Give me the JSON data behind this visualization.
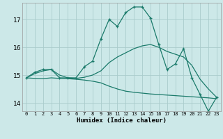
{
  "xlabel": "Humidex (Indice chaleur)",
  "bg_color": "#cce8e8",
  "grid_color": "#aacccc",
  "line_color": "#1a7a6a",
  "xlim": [
    -0.5,
    23.5
  ],
  "ylim": [
    13.7,
    17.6
  ],
  "yticks": [
    14,
    15,
    16,
    17
  ],
  "xticks": [
    0,
    1,
    2,
    3,
    4,
    5,
    6,
    7,
    8,
    9,
    10,
    11,
    12,
    13,
    14,
    15,
    16,
    17,
    18,
    19,
    20,
    21,
    22,
    23
  ],
  "series": [
    {
      "x": [
        0,
        1,
        2,
        3,
        4,
        5,
        6,
        7,
        8,
        9,
        10,
        11,
        12,
        13,
        14,
        15,
        16,
        17,
        18,
        19,
        20,
        21,
        22,
        23
      ],
      "y": [
        14.9,
        15.1,
        15.2,
        15.2,
        14.9,
        14.9,
        14.9,
        15.3,
        15.5,
        16.3,
        17.0,
        16.75,
        17.25,
        17.45,
        17.45,
        17.05,
        16.1,
        15.2,
        15.4,
        15.95,
        14.9,
        14.3,
        13.7,
        14.2
      ],
      "marker": true
    },
    {
      "x": [
        0,
        1,
        2,
        3,
        4,
        5,
        6,
        7,
        8,
        9,
        10,
        11,
        12,
        13,
        14,
        15,
        16,
        17,
        18,
        19,
        20,
        21,
        22,
        23
      ],
      "y": [
        14.9,
        15.05,
        15.15,
        15.2,
        15.0,
        14.9,
        14.88,
        14.92,
        15.0,
        15.15,
        15.45,
        15.65,
        15.8,
        15.95,
        16.05,
        16.1,
        16.0,
        15.85,
        15.75,
        15.65,
        15.35,
        14.85,
        14.5,
        14.2
      ],
      "marker": false
    },
    {
      "x": [
        0,
        1,
        2,
        3,
        4,
        5,
        6,
        7,
        8,
        9,
        10,
        11,
        12,
        13,
        14,
        15,
        16,
        17,
        18,
        19,
        20,
        21,
        22,
        23
      ],
      "y": [
        14.9,
        14.88,
        14.87,
        14.9,
        14.88,
        14.87,
        14.85,
        14.82,
        14.78,
        14.72,
        14.6,
        14.5,
        14.42,
        14.38,
        14.35,
        14.32,
        14.3,
        14.28,
        14.26,
        14.24,
        14.22,
        14.2,
        14.18,
        14.15
      ],
      "marker": false
    }
  ]
}
